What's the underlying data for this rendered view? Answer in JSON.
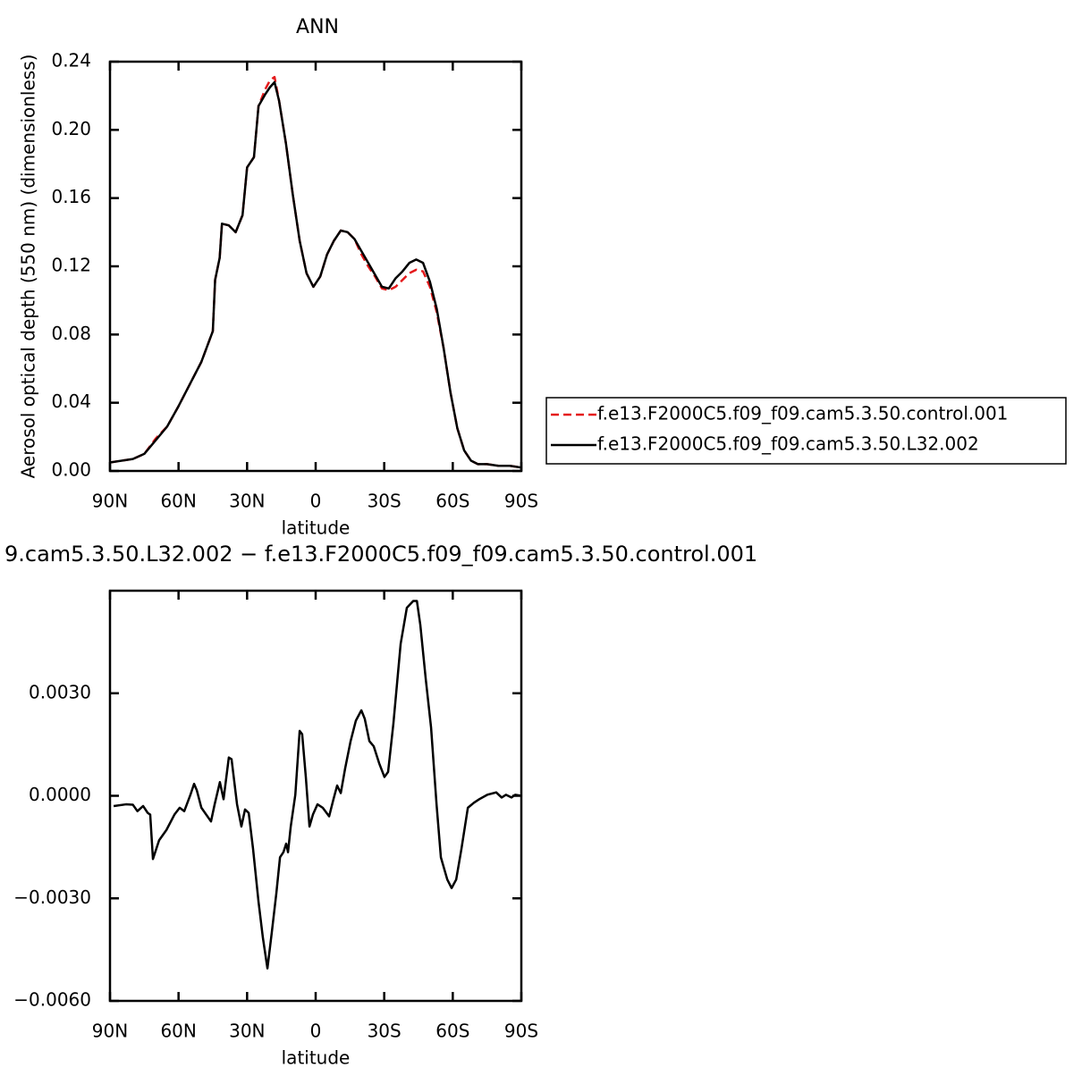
{
  "chart_data": [
    {
      "type": "line",
      "title": "ANN",
      "xlabel": "latitude",
      "ylabel": "Aerosol optical depth (550 nm) (dimensionless)",
      "x": [
        90,
        80,
        75,
        70,
        65,
        60,
        55,
        50,
        45,
        44,
        42,
        41,
        38,
        35,
        32,
        30,
        27,
        25,
        22,
        20,
        18,
        16,
        13,
        10,
        7,
        4,
        1,
        -2,
        -5,
        -8,
        -11,
        -14,
        -17,
        -20,
        -23,
        -26,
        -29,
        -32,
        -35,
        -38,
        -41,
        -44,
        -47,
        -50,
        -53,
        -56,
        -59,
        -62,
        -65,
        -68,
        -71,
        -75,
        -80,
        -85,
        -90
      ],
      "series": [
        {
          "name": "f.e13.F2000C5.f09_f09.cam5.3.50.control.001",
          "color": "#e41a1c",
          "line_style": "dashed",
          "values": [
            0.005,
            0.007,
            0.01,
            0.019,
            0.026,
            0.038,
            0.051,
            0.064,
            0.082,
            0.112,
            0.125,
            0.145,
            0.144,
            0.14,
            0.15,
            0.178,
            0.184,
            0.214,
            0.224,
            0.229,
            0.231,
            0.217,
            0.192,
            0.162,
            0.135,
            0.116,
            0.108,
            0.114,
            0.127,
            0.135,
            0.141,
            0.14,
            0.136,
            0.127,
            0.12,
            0.114,
            0.107,
            0.106,
            0.108,
            0.112,
            0.116,
            0.118,
            0.117,
            0.108,
            0.093,
            0.072,
            0.046,
            0.025,
            0.012,
            0.006,
            0.004,
            0.004,
            0.003,
            0.003,
            0.002
          ]
        },
        {
          "name": "f.e13.F2000C5.f09_f09.cam5.3.50.L32.002",
          "color": "#000000",
          "line_style": "solid",
          "values": [
            0.005,
            0.007,
            0.01,
            0.018,
            0.026,
            0.038,
            0.051,
            0.064,
            0.082,
            0.112,
            0.125,
            0.145,
            0.144,
            0.14,
            0.15,
            0.178,
            0.184,
            0.214,
            0.221,
            0.225,
            0.228,
            0.217,
            0.192,
            0.162,
            0.135,
            0.116,
            0.108,
            0.114,
            0.127,
            0.135,
            0.141,
            0.14,
            0.136,
            0.129,
            0.122,
            0.115,
            0.108,
            0.107,
            0.113,
            0.117,
            0.122,
            0.124,
            0.122,
            0.111,
            0.095,
            0.072,
            0.046,
            0.025,
            0.012,
            0.006,
            0.004,
            0.004,
            0.003,
            0.003,
            0.002
          ]
        }
      ],
      "xlim": [
        90,
        -90
      ],
      "xticks": [
        {
          "value": 90,
          "label": "90N"
        },
        {
          "value": 60,
          "label": "60N"
        },
        {
          "value": 30,
          "label": "30N"
        },
        0,
        {
          "value": -30,
          "label": "30S"
        },
        {
          "value": -60,
          "label": "60S"
        },
        {
          "value": -90,
          "label": "90S"
        }
      ],
      "ylim": [
        0,
        0.24
      ],
      "yticks": [
        {
          "value": 0,
          "label": "0.00"
        },
        0.04,
        0.08,
        0.12,
        0.16,
        {
          "value": 0.2,
          "label": "0.20"
        },
        0.24
      ],
      "legend": "right"
    },
    {
      "type": "line",
      "title": "9.cam5.3.50.L32.002 − f.e13.F2000C5.f09_f09.cam5.3.50.control.001",
      "xlabel": "latitude",
      "x": [
        88.4,
        83,
        80,
        78,
        75.5,
        73.5,
        72.4,
        71.2,
        68.5,
        65.3,
        61.8,
        59.5,
        57.5,
        54.8,
        53.2,
        52,
        50,
        45.8,
        44.2,
        41.9,
        40.3,
        38,
        36.8,
        34.4,
        32.5,
        30.9,
        29.3,
        27.4,
        25,
        23.1,
        21.1,
        19.2,
        17.2,
        15.6,
        14.1,
        12.9,
        12.1,
        10.9,
        8.9,
        7,
        5.9,
        4.3,
        2.7,
        1.2,
        -0.8,
        -3.1,
        -5.9,
        -7.8,
        -9.4,
        -11,
        -12.9,
        -15.3,
        -17.6,
        -20,
        -21.5,
        -23.5,
        -25.4,
        -27.8,
        -30.1,
        -31.7,
        -34,
        -37.2,
        -39.9,
        -42.7,
        -44.3,
        -45.8,
        -48.2,
        -50.5,
        -52.9,
        -54.8,
        -57.6,
        -59.5,
        -61.5,
        -63.8,
        -66.6,
        -69.3,
        -71.6,
        -75.1,
        -79,
        -81.4,
        -83.3,
        -85.7,
        -87.3,
        -90
      ],
      "values": [
        -0.0003,
        -0.00025,
        -0.00026,
        -0.00045,
        -0.0003,
        -0.0005,
        -0.00055,
        -0.00185,
        -0.0013,
        -0.001,
        -0.00055,
        -0.00035,
        -0.00045,
        3e-05,
        0.00035,
        0.00016,
        -0.00035,
        -0.00075,
        -0.00025,
        0.0004,
        -0.0001,
        0.00112,
        0.00107,
        -0.00025,
        -0.0009,
        -0.0004,
        -0.0005,
        -0.00155,
        -0.0031,
        -0.00415,
        -0.00505,
        -0.004,
        -0.00285,
        -0.0018,
        -0.00165,
        -0.0014,
        -0.00165,
        -0.0009,
        3e-05,
        0.0019,
        0.0018,
        0.00055,
        -0.0009,
        -0.00055,
        -0.00025,
        -0.00035,
        -0.0006,
        -0.0001,
        0.0003,
        8e-05,
        0.0008,
        0.0016,
        0.0022,
        0.0025,
        0.00225,
        0.0016,
        0.00145,
        0.00095,
        0.00055,
        0.0007,
        0.0021,
        0.00445,
        0.0055,
        0.0057,
        0.0057,
        0.005,
        0.0034,
        0.002,
        -0.00025,
        -0.0018,
        -0.00245,
        -0.0027,
        -0.00245,
        -0.00155,
        -0.00035,
        -0.0002,
        -0.0001,
        3e-05,
        0.0001,
        -5e-05,
        3e-05,
        -5e-05,
        3e-05,
        0
      ],
      "color": "#000000",
      "xlim": [
        90,
        -90
      ],
      "xticks": [
        {
          "value": 90,
          "label": "90N"
        },
        {
          "value": 60,
          "label": "60N"
        },
        {
          "value": 30,
          "label": "30N"
        },
        0,
        {
          "value": -30,
          "label": "30S"
        },
        {
          "value": -60,
          "label": "60S"
        },
        {
          "value": -90,
          "label": "90S"
        }
      ],
      "ylim": [
        -0.006,
        0.006
      ],
      "yticks": [
        {
          "value": -0.006,
          "label": "−0.0060"
        },
        {
          "value": -0.003,
          "label": "−0.0030"
        },
        {
          "value": 0,
          "label": "0.0000"
        },
        {
          "value": 0.003,
          "label": "0.0030"
        }
      ]
    }
  ]
}
